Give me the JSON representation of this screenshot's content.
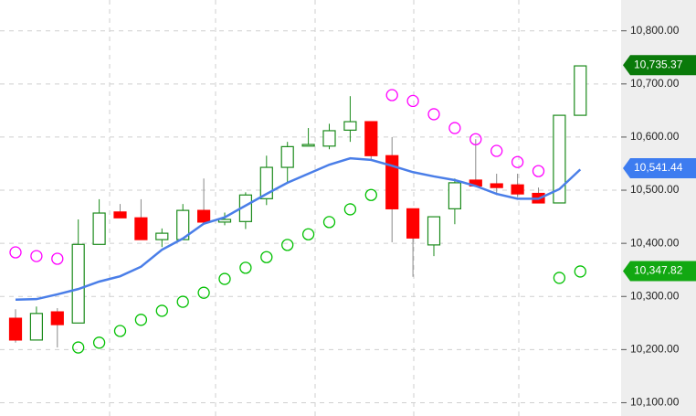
{
  "chart_data": {
    "type": "candlestick",
    "ylim": [
      10075,
      10858
    ],
    "yticks": [
      {
        "value": 10100,
        "label": "10,100.00"
      },
      {
        "value": 10200,
        "label": "10,200.00"
      },
      {
        "value": 10300,
        "label": "10,300.00"
      },
      {
        "value": 10400,
        "label": "10,400.00"
      },
      {
        "value": 10500,
        "label": "10,500.00"
      },
      {
        "value": 10600,
        "label": "10,600.00"
      },
      {
        "value": 10700,
        "label": "10,700.00"
      },
      {
        "value": 10800,
        "label": "10,800.00"
      }
    ],
    "grid": true,
    "ohlc": {
      "up_color": "#1a8a1a",
      "down_color": "#ff0000",
      "open": [
        10259,
        10218,
        10271,
        10250,
        10398,
        10459,
        10448,
        10407,
        10407,
        10462,
        10440,
        10441,
        10484,
        10543,
        10583,
        10583,
        10613,
        10629,
        10565,
        10465,
        10397,
        10465,
        10519,
        10512,
        10510,
        10494,
        10476,
        10641
      ],
      "high": [
        10276,
        10281,
        10278,
        10445,
        10483,
        10474,
        10483,
        10428,
        10474,
        10522,
        10458,
        10496,
        10565,
        10591,
        10617,
        10625,
        10677,
        10629,
        10600,
        10465,
        10450,
        10522,
        10596,
        10531,
        10531,
        10505,
        10641,
        10734
      ],
      "low": [
        10213,
        10218,
        10204,
        10250,
        10398,
        10448,
        10407,
        10393,
        10407,
        10436,
        10434,
        10427,
        10472,
        10514,
        10583,
        10577,
        10591,
        10557,
        10402,
        10337,
        10376,
        10436,
        10508,
        10491,
        10487,
        10476,
        10476,
        10641
      ],
      "close": [
        10218,
        10268,
        10247,
        10398,
        10457,
        10448,
        10407,
        10419,
        10462,
        10440,
        10445,
        10491,
        10543,
        10582,
        10586,
        10612,
        10629,
        10565,
        10465,
        10410,
        10450,
        10514,
        10508,
        10505,
        10493,
        10476,
        10641,
        10734
      ]
    },
    "sar": {
      "below_color": "#00c000",
      "above_color": "#ff00ff",
      "values": [
        10383,
        10376,
        10371,
        10204,
        10213,
        10235,
        10256,
        10273,
        10290,
        10307,
        10333,
        10354,
        10374,
        10397,
        10417,
        10440,
        10464,
        10491,
        10679,
        10668,
        10643,
        10617,
        10596,
        10574,
        10553,
        10536,
        10335,
        10347
      ]
    },
    "ma": {
      "color": "#4a7ee8",
      "values": [
        10294,
        10295,
        10304,
        10314,
        10328,
        10338,
        10356,
        10388,
        10409,
        10437,
        10449,
        10471,
        10493,
        10514,
        10531,
        10548,
        10560,
        10557,
        10546,
        10534,
        10526,
        10519,
        10508,
        10493,
        10484,
        10484,
        10502,
        10539
      ]
    },
    "price_tags": [
      {
        "value": 10735.37,
        "label": "10,735.37",
        "color": "#0a7a0a"
      },
      {
        "value": 10541.44,
        "label": "10,541.44",
        "color": "#3d7cf0"
      },
      {
        "value": 10347.82,
        "label": "10,347.82",
        "color": "#12a812"
      }
    ]
  }
}
